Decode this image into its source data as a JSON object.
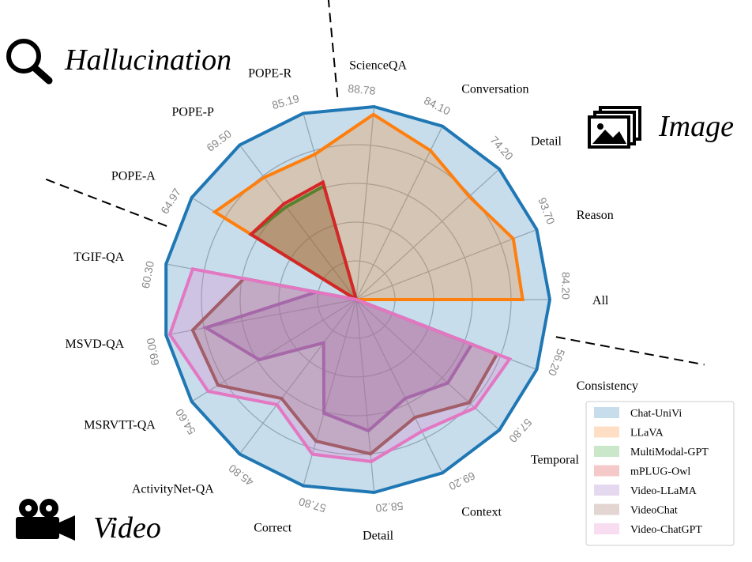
{
  "sections": {
    "hallucination": "Hallucination",
    "image": "Image",
    "video": "Video"
  },
  "icons": {
    "hallucination": "magnifier-icon",
    "image": "image-gallery-icon",
    "video": "film-camera-icon"
  },
  "chart_data": {
    "type": "radar",
    "axes": [
      {
        "label": "All",
        "max": "84.20",
        "group": "Image"
      },
      {
        "label": "Reason",
        "max": "93.70",
        "group": "Image"
      },
      {
        "label": "Detail",
        "max": "74.20",
        "group": "Image"
      },
      {
        "label": "Conversation",
        "max": "84.10",
        "group": "Image"
      },
      {
        "label": "ScienceQA",
        "max": "88.78",
        "group": "Image"
      },
      {
        "label": "POPE-R",
        "max": "85.19",
        "group": "Hallucination"
      },
      {
        "label": "POPE-P",
        "max": "69.50",
        "group": "Hallucination"
      },
      {
        "label": "POPE-A",
        "max": "64.97",
        "group": "Hallucination"
      },
      {
        "label": "TGIF-QA",
        "max": "60.30",
        "group": "Video"
      },
      {
        "label": "MSVD-QA",
        "max": "69.00",
        "group": "Video"
      },
      {
        "label": "MSRVTT-QA",
        "max": "54.60",
        "group": "Video"
      },
      {
        "label": "ActivityNet-QA",
        "max": "45.80",
        "group": "Video"
      },
      {
        "label": "Correct",
        "max": "57.80",
        "group": "Video"
      },
      {
        "label": "Detail",
        "max": "58.20",
        "group": "Video"
      },
      {
        "label": "Context",
        "max": "69.20",
        "group": "Video"
      },
      {
        "label": "Temporal",
        "max": "57.80",
        "group": "Video"
      },
      {
        "label": "Consistency",
        "max": "56.20",
        "group": "Video"
      }
    ],
    "series": [
      {
        "name": "Chat-UniVi",
        "stroke": "#1f77b4",
        "fill": "#1f77b4",
        "values": [
          1,
          1,
          1,
          1,
          1,
          1,
          1,
          1,
          1,
          1,
          1,
          1,
          1,
          1,
          1,
          1,
          1
        ]
      },
      {
        "name": "LLaVA",
        "stroke": "#ff7f0e",
        "fill": "#ff7f0e",
        "values": [
          0.86,
          0.87,
          0.79,
          0.86,
          0.96,
          0.78,
          0.79,
          0.86,
          0,
          0,
          0,
          0,
          0,
          0,
          0,
          0,
          0
        ]
      },
      {
        "name": "MultiModal-GPT",
        "stroke": "#2ca02c",
        "fill": "#2ca02c",
        "values": [
          0,
          0,
          0,
          0,
          0,
          0.61,
          0.6,
          0.64,
          0,
          0,
          0,
          0,
          0,
          0,
          0,
          0,
          0
        ]
      },
      {
        "name": "mPLUG-Owl",
        "stroke": "#d62728",
        "fill": "#d62728",
        "values": [
          0,
          0,
          0,
          0,
          0,
          0.63,
          0.62,
          0.64,
          0,
          0,
          0,
          0,
          0,
          0,
          0,
          0,
          0
        ]
      },
      {
        "name": "Video-LLaMA",
        "stroke": "#9467bd",
        "fill": "#9467bd",
        "values": [
          0,
          0,
          0,
          0,
          0,
          0,
          0,
          0,
          0.21,
          0.79,
          0.59,
          0.28,
          0.61,
          0.68,
          0.57,
          0.64,
          0.64
        ]
      },
      {
        "name": "VideoChat",
        "stroke": "#8c564b",
        "fill": "#8c564b",
        "values": [
          0,
          0,
          0,
          0,
          0,
          0,
          0,
          0,
          0.59,
          0.86,
          0.84,
          0.64,
          0.76,
          0.8,
          0.68,
          0.79,
          0.78
        ]
      },
      {
        "name": "Video-ChatGPT",
        "stroke": "#e377c2",
        "fill": "#e377c2",
        "values": [
          0,
          0,
          0,
          0,
          0,
          0,
          0,
          0,
          0.86,
          0.98,
          0.9,
          0.68,
          0.83,
          0.84,
          0.76,
          0.83,
          0.85
        ]
      }
    ],
    "rlim": [
      0,
      1
    ],
    "grid": true,
    "legend_position": "bottom-right"
  }
}
